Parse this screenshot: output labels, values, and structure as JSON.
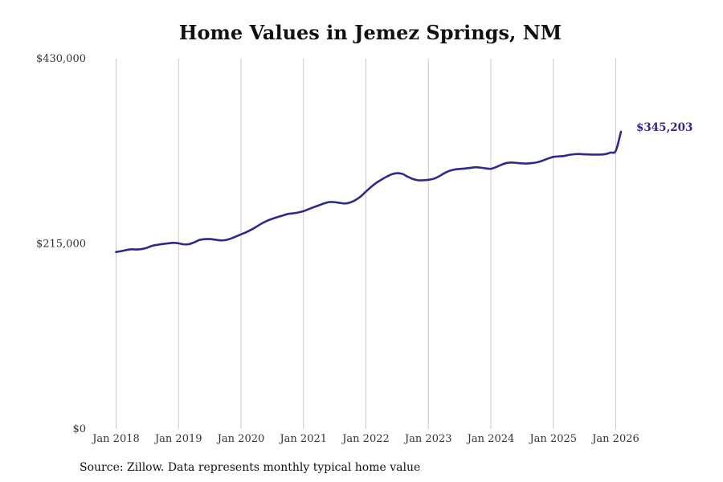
{
  "title": "Home Values in Jemez Springs, NM",
  "source": "Source: Zillow. Data represents monthly typical home value",
  "colors": {
    "line": "#2e2a8c",
    "grid": "#c8c8c8",
    "end_label": "#2e2a8c"
  },
  "chart_data": {
    "type": "line",
    "title": "Home Values in Jemez Springs, NM",
    "xlabel": "",
    "ylabel": "",
    "y_ticks": [
      {
        "value": 0,
        "label": "$0"
      },
      {
        "value": 215000,
        "label": "$215,000"
      },
      {
        "value": 430000,
        "label": "$430,000"
      }
    ],
    "x_ticks": [
      "Jan 2018",
      "Jan 2019",
      "Jan 2020",
      "Jan 2021",
      "Jan 2022",
      "Jan 2023",
      "Jan 2024",
      "Jan 2025",
      "Jan 2026"
    ],
    "ylim": [
      0,
      430000
    ],
    "grid": "vertical lines at year ticks",
    "end_label": "$345,203",
    "series": [
      {
        "points": [
          [
            "2018-01",
            205500
          ],
          [
            "2018-02",
            206500
          ],
          [
            "2018-03",
            207800
          ],
          [
            "2018-04",
            208600
          ],
          [
            "2018-05",
            208400
          ],
          [
            "2018-06",
            209000
          ],
          [
            "2018-07",
            210600
          ],
          [
            "2018-08",
            212800
          ],
          [
            "2018-09",
            213900
          ],
          [
            "2018-10",
            214800
          ],
          [
            "2018-11",
            215500
          ],
          [
            "2018-12",
            216100
          ],
          [
            "2019-01",
            215600
          ],
          [
            "2019-02",
            214400
          ],
          [
            "2019-03",
            214600
          ],
          [
            "2019-04",
            216700
          ],
          [
            "2019-05",
            219400
          ],
          [
            "2019-06",
            220400
          ],
          [
            "2019-07",
            220500
          ],
          [
            "2019-08",
            219800
          ],
          [
            "2019-09",
            219000
          ],
          [
            "2019-10",
            219300
          ],
          [
            "2019-11",
            221000
          ],
          [
            "2019-12",
            223400
          ],
          [
            "2020-01",
            226000
          ],
          [
            "2020-02",
            228500
          ],
          [
            "2020-03",
            231500
          ],
          [
            "2020-04",
            235000
          ],
          [
            "2020-05",
            238700
          ],
          [
            "2020-06",
            241700
          ],
          [
            "2020-07",
            244000
          ],
          [
            "2020-08",
            246000
          ],
          [
            "2020-09",
            247800
          ],
          [
            "2020-10",
            249700
          ],
          [
            "2020-11",
            250400
          ],
          [
            "2020-12",
            251400
          ],
          [
            "2021-01",
            252900
          ],
          [
            "2021-02",
            255300
          ],
          [
            "2021-03",
            257600
          ],
          [
            "2021-04",
            259800
          ],
          [
            "2021-05",
            262000
          ],
          [
            "2021-06",
            263500
          ],
          [
            "2021-07",
            263400
          ],
          [
            "2021-08",
            262500
          ],
          [
            "2021-09",
            261800
          ],
          [
            "2021-10",
            263000
          ],
          [
            "2021-11",
            265800
          ],
          [
            "2021-12",
            270000
          ],
          [
            "2022-01",
            275700
          ],
          [
            "2022-02",
            281000
          ],
          [
            "2022-03",
            285800
          ],
          [
            "2022-04",
            289600
          ],
          [
            "2022-05",
            293000
          ],
          [
            "2022-06",
            295800
          ],
          [
            "2022-07",
            297000
          ],
          [
            "2022-08",
            296200
          ],
          [
            "2022-09",
            293000
          ],
          [
            "2022-10",
            290300
          ],
          [
            "2022-11",
            288800
          ],
          [
            "2022-12",
            288800
          ],
          [
            "2023-01",
            289300
          ],
          [
            "2023-02",
            290500
          ],
          [
            "2023-03",
            293200
          ],
          [
            "2023-04",
            296800
          ],
          [
            "2023-05",
            299600
          ],
          [
            "2023-06",
            301200
          ],
          [
            "2023-07",
            301900
          ],
          [
            "2023-08",
            302400
          ],
          [
            "2023-09",
            303100
          ],
          [
            "2023-10",
            303900
          ],
          [
            "2023-11",
            303500
          ],
          [
            "2023-12",
            302600
          ],
          [
            "2024-01",
            302100
          ],
          [
            "2024-02",
            304100
          ],
          [
            "2024-03",
            306700
          ],
          [
            "2024-04",
            308800
          ],
          [
            "2024-05",
            309400
          ],
          [
            "2024-06",
            308900
          ],
          [
            "2024-07",
            308400
          ],
          [
            "2024-08",
            308200
          ],
          [
            "2024-09",
            308800
          ],
          [
            "2024-10",
            309800
          ],
          [
            "2024-11",
            311700
          ],
          [
            "2024-12",
            314000
          ],
          [
            "2025-01",
            315900
          ],
          [
            "2025-02",
            316500
          ],
          [
            "2025-03",
            317000
          ],
          [
            "2025-04",
            318200
          ],
          [
            "2025-05",
            319000
          ],
          [
            "2025-06",
            319300
          ],
          [
            "2025-07",
            318900
          ],
          [
            "2025-08",
            318700
          ],
          [
            "2025-09",
            318600
          ],
          [
            "2025-10",
            318600
          ],
          [
            "2025-11",
            319200
          ],
          [
            "2025-12",
            320900
          ],
          [
            "2026-01",
            323000
          ],
          [
            "2026-02",
            345203
          ]
        ]
      }
    ]
  }
}
